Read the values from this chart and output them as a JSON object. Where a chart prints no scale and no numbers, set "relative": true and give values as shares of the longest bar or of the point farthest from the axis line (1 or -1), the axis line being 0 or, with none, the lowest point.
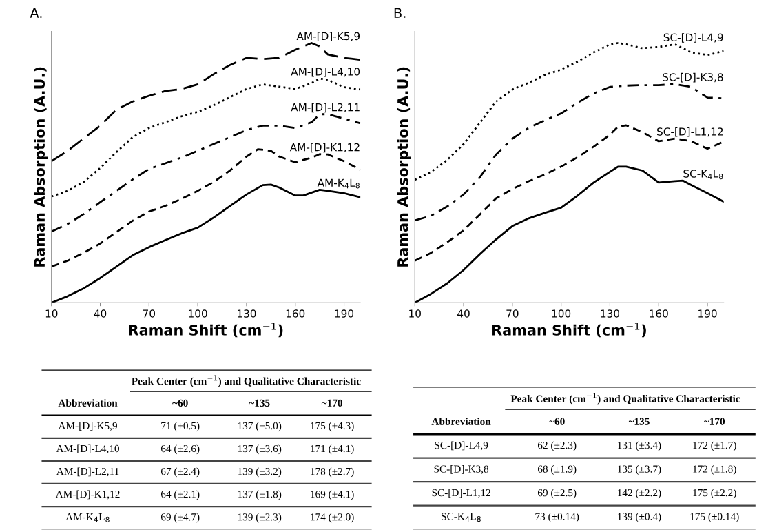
{
  "chart_data": [
    {
      "type": "line",
      "title": "A.",
      "xlabel": "Raman Shift (cm$^{−1}$)",
      "ylabel": "Raman Absorption (A.U.)",
      "relative": true,
      "xlim": [
        10,
        200
      ],
      "xticks": [
        10,
        40,
        70,
        100,
        130,
        160,
        190
      ],
      "tick_labels": "x",
      "grid": false,
      "legend": false,
      "series": [
        {
          "name": "AM-[D]-K5,9",
          "color": "#000000",
          "line_style": "longdash",
          "x": [
            10,
            20,
            30,
            40,
            50,
            60,
            70,
            80,
            90,
            100,
            110,
            120,
            130,
            140,
            150,
            160,
            170,
            175,
            180,
            190,
            200
          ],
          "values": [
            0.545,
            0.585,
            0.634,
            0.682,
            0.744,
            0.775,
            0.797,
            0.815,
            0.823,
            0.841,
            0.881,
            0.916,
            0.943,
            0.938,
            0.943,
            0.974,
            1.0,
            0.987,
            0.956,
            0.943,
            0.936
          ]
        },
        {
          "name": "AM-[D]-L4,10",
          "color": "#000000",
          "line_style": "dotted",
          "x": [
            10,
            20,
            30,
            40,
            50,
            60,
            70,
            80,
            90,
            100,
            110,
            120,
            130,
            140,
            150,
            160,
            170,
            175,
            180,
            190,
            200
          ],
          "values": [
            0.409,
            0.431,
            0.466,
            0.519,
            0.58,
            0.638,
            0.673,
            0.695,
            0.718,
            0.735,
            0.761,
            0.792,
            0.823,
            0.841,
            0.832,
            0.823,
            0.846,
            0.863,
            0.859,
            0.83,
            0.821
          ]
        },
        {
          "name": "AM-[D]-L2,11",
          "color": "#000000",
          "line_style": "dashdot",
          "x": [
            10,
            20,
            30,
            40,
            50,
            60,
            70,
            80,
            90,
            100,
            110,
            120,
            130,
            140,
            150,
            160,
            170,
            175,
            180,
            190,
            200
          ],
          "values": [
            0.274,
            0.303,
            0.342,
            0.387,
            0.431,
            0.475,
            0.515,
            0.537,
            0.559,
            0.585,
            0.612,
            0.638,
            0.665,
            0.682,
            0.682,
            0.673,
            0.695,
            0.726,
            0.726,
            0.709,
            0.691
          ]
        },
        {
          "name": "AM-[D]-K1,12",
          "color": "#000000",
          "line_style": "dashed",
          "x": [
            10,
            20,
            30,
            40,
            50,
            60,
            70,
            80,
            90,
            100,
            110,
            120,
            130,
            137,
            145,
            150,
            160,
            170,
            175,
            180,
            190,
            200
          ],
          "values": [
            0.139,
            0.162,
            0.193,
            0.228,
            0.272,
            0.316,
            0.351,
            0.373,
            0.4,
            0.431,
            0.466,
            0.51,
            0.563,
            0.591,
            0.585,
            0.563,
            0.541,
            0.559,
            0.572,
            0.571,
            0.545,
            0.512
          ]
        },
        {
          "name": "AM-K$_{4}$L$_{8}$",
          "color": "#000000",
          "line_style": "solid",
          "x": [
            10,
            20,
            30,
            40,
            50,
            60,
            70,
            80,
            90,
            100,
            110,
            120,
            130,
            140,
            145,
            150,
            160,
            165,
            175,
            180,
            190,
            200
          ],
          "values": [
            0,
            0.025,
            0.056,
            0.095,
            0.139,
            0.183,
            0.214,
            0.241,
            0.267,
            0.289,
            0.329,
            0.373,
            0.417,
            0.453,
            0.455,
            0.444,
            0.413,
            0.413,
            0.435,
            0.431,
            0.422,
            0.406
          ]
        }
      ]
    },
    {
      "type": "line",
      "title": "B.",
      "xlabel": "Raman Shift (cm$^{−1}$)",
      "ylabel": "Raman Absorption (A.U.)",
      "relative": true,
      "xlim": [
        10,
        200
      ],
      "xticks": [
        10,
        40,
        70,
        100,
        130,
        160,
        190
      ],
      "tick_labels": "x",
      "grid": false,
      "legend": false,
      "series": [
        {
          "name": "SC-[D]-L4,9",
          "color": "#000000",
          "line_style": "dotted",
          "x": [
            10,
            20,
            30,
            40,
            50,
            60,
            70,
            80,
            90,
            100,
            110,
            120,
            130,
            135,
            140,
            150,
            160,
            170,
            180,
            190,
            200
          ],
          "values": [
            0.473,
            0.504,
            0.55,
            0.611,
            0.693,
            0.775,
            0.821,
            0.847,
            0.877,
            0.898,
            0.928,
            0.964,
            0.995,
            1.0,
            0.995,
            0.98,
            0.985,
            0.995,
            0.964,
            0.954,
            0.969
          ]
        },
        {
          "name": "SC-[D]-K3,8",
          "color": "#000000",
          "line_style": "dashdot",
          "x": [
            10,
            20,
            30,
            40,
            50,
            60,
            70,
            80,
            90,
            100,
            110,
            120,
            130,
            140,
            150,
            160,
            170,
            180,
            190,
            200
          ],
          "values": [
            0.317,
            0.335,
            0.371,
            0.417,
            0.483,
            0.571,
            0.632,
            0.673,
            0.703,
            0.729,
            0.77,
            0.806,
            0.831,
            0.836,
            0.838,
            0.838,
            0.842,
            0.831,
            0.79,
            0.787
          ]
        },
        {
          "name": "SC-[D]-L1,12",
          "color": "#000000",
          "line_style": "dashed",
          "x": [
            10,
            20,
            30,
            40,
            50,
            60,
            70,
            80,
            90,
            100,
            110,
            120,
            130,
            135,
            140,
            150,
            160,
            170,
            180,
            190,
            200
          ],
          "values": [
            0.162,
            0.192,
            0.233,
            0.279,
            0.34,
            0.402,
            0.438,
            0.468,
            0.494,
            0.524,
            0.56,
            0.601,
            0.647,
            0.678,
            0.683,
            0.657,
            0.622,
            0.632,
            0.622,
            0.593,
            0.62
          ]
        },
        {
          "name": "SC-K$_{4}$L$_{8}$",
          "color": "#000000",
          "line_style": "solid",
          "x": [
            10,
            20,
            30,
            40,
            50,
            60,
            70,
            80,
            90,
            100,
            110,
            120,
            130,
            135,
            140,
            150,
            160,
            170,
            175,
            180,
            190,
            200
          ],
          "values": [
            0,
            0.034,
            0.075,
            0.126,
            0.187,
            0.244,
            0.295,
            0.325,
            0.346,
            0.366,
            0.412,
            0.463,
            0.504,
            0.524,
            0.524,
            0.509,
            0.463,
            0.468,
            0.47,
            0.453,
            0.422,
            0.389
          ]
        }
      ]
    },
    {
      "type": "other",
      "title": "Peak Center (cm$^{−1}$) and Qualitative Characteristic",
      "categories": [
        "Abbreviation",
        "~60",
        "~135",
        "~170"
      ],
      "y_categories": [
        "AM-[D]-K5,9",
        "AM-[D]-L4,10",
        "AM-[D]-L2,11",
        "AM-[D]-K1,12",
        "AM-K$_{4}$L$_{8}$"
      ],
      "cell_labels": [
        [
          "71 (±0.5)",
          "137 (±5.0)",
          "175 (±4.3)"
        ],
        [
          "64 (±2.6)",
          "137 (±3.6)",
          "171 (±4.1)"
        ],
        [
          "67 (±2.4)",
          "139 (±3.2)",
          "178 (±2.7)"
        ],
        [
          "64 (±2.1)",
          "137 (±1.8)",
          "169 (±4.1)"
        ],
        [
          "69 (±4.7)",
          "139 (±2.3)",
          "174 (±2.0)"
        ]
      ]
    },
    {
      "type": "other",
      "title": "Peak Center (cm$^{−1}$) and Qualitative Characteristic",
      "categories": [
        "Abbreviation",
        "~60",
        "~135",
        "~170"
      ],
      "y_categories": [
        "SC-[D]-L4,9",
        "SC-[D]-K3,8",
        "SC-[D]-L1,12",
        "SC-K$_{4}$L$_{8}$"
      ],
      "cell_labels": [
        [
          "62 (±2.3)",
          "131 (±3.4)",
          "172 (±1.7)"
        ],
        [
          "68 (±1.9)",
          "135 (±3.7)",
          "172 (±1.8)"
        ],
        [
          "69 (±2.5)",
          "142 (±2.2)",
          "175 (±2.2)"
        ],
        [
          "73 (±0.14)",
          "139 (±0.4)",
          "175 (±0.14)"
        ]
      ]
    }
  ]
}
